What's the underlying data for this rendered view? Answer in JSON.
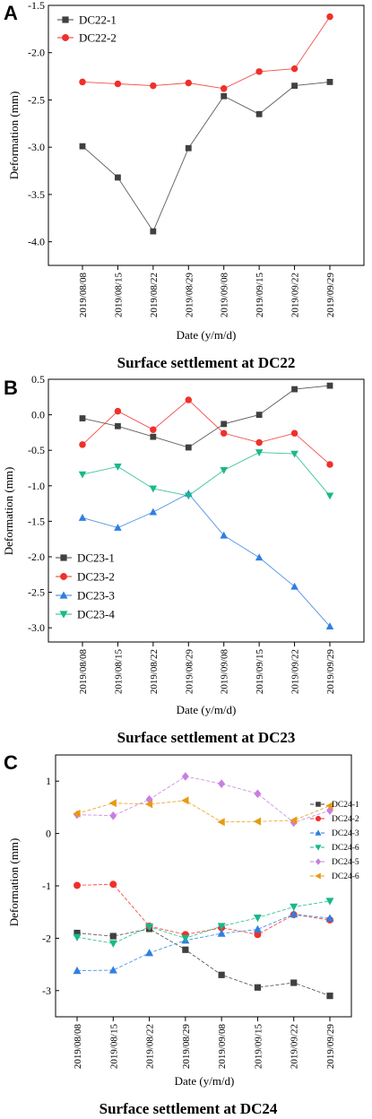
{
  "chart_data": [
    {
      "panel": "A",
      "type": "line",
      "caption": "Surface settlement at DC22",
      "xlabel": "Date (y/m/d)",
      "ylabel": "Deformation (mm)",
      "categories": [
        "2019/08/08",
        "2019/08/15",
        "2019/08/22",
        "2019/08/29",
        "2019/09/08",
        "2019/09/15",
        "2019/09/22",
        "2019/09/29"
      ],
      "ylim": [
        -4.25,
        -1.5
      ],
      "yticks": [
        "-1.5",
        "-2.0",
        "-2.5",
        "-3.0",
        "-3.5",
        "-4.0"
      ],
      "ytick_values": [
        -1.5,
        -2.0,
        -2.5,
        -3.0,
        -3.5,
        -4.0
      ],
      "legend_position": "top-left",
      "series": [
        {
          "name": "DC22-1",
          "color": "#404040",
          "marker": "square",
          "values": [
            -2.99,
            -3.32,
            -3.89,
            -3.01,
            -2.46,
            -2.65,
            -2.35,
            -2.31
          ]
        },
        {
          "name": "DC22-2",
          "color": "#f0302a",
          "marker": "circle",
          "values": [
            -2.31,
            -2.33,
            -2.35,
            -2.32,
            -2.38,
            -2.2,
            -2.17,
            -1.62
          ]
        }
      ]
    },
    {
      "panel": "B",
      "type": "line",
      "caption": "Surface settlement at DC23",
      "xlabel": "Date (y/m/d)",
      "ylabel": "Deformation (mm)",
      "categories": [
        "2019/08/08",
        "2019/08/15",
        "2019/08/22",
        "2019/08/29",
        "2019/09/08",
        "2019/09/15",
        "2019/09/22",
        "2019/09/29"
      ],
      "ylim": [
        -3.2,
        0.5
      ],
      "yticks": [
        "0.5",
        "0.0",
        "-0.5",
        "-1.0",
        "-1.5",
        "-2.0",
        "-2.5",
        "-3.0"
      ],
      "ytick_values": [
        0.5,
        0.0,
        -0.5,
        -1.0,
        -1.5,
        -2.0,
        -2.5,
        -3.0
      ],
      "legend_position": "bottom-left",
      "series": [
        {
          "name": "DC23-1",
          "color": "#404040",
          "marker": "square",
          "values": [
            -0.05,
            -0.16,
            -0.31,
            -0.46,
            -0.13,
            0.0,
            0.36,
            0.41
          ]
        },
        {
          "name": "DC23-2",
          "color": "#f0302a",
          "marker": "circle",
          "values": [
            -0.42,
            0.05,
            -0.21,
            0.21,
            -0.26,
            -0.39,
            -0.26,
            -0.7
          ]
        },
        {
          "name": "DC23-3",
          "color": "#2f7fe0",
          "marker": "triangle-up",
          "values": [
            -1.45,
            -1.59,
            -1.37,
            -1.11,
            -1.7,
            -2.01,
            -2.42,
            -2.98
          ]
        },
        {
          "name": "DC23-4",
          "color": "#19b88a",
          "marker": "triangle-down",
          "values": [
            -0.84,
            -0.73,
            -1.04,
            -1.14,
            -0.78,
            -0.53,
            -0.55,
            -1.14
          ]
        }
      ]
    },
    {
      "panel": "C",
      "type": "line",
      "caption": "Surface settlement at DC24",
      "xlabel": "Date (y/m/d)",
      "ylabel": "Deformation (mm)",
      "categories": [
        "2019/08/08",
        "2019/08/15",
        "2019/08/22",
        "2019/08/29",
        "2019/09/08",
        "2019/09/15",
        "2019/09/22",
        "2019/09/29"
      ],
      "ylim": [
        -3.5,
        1.5
      ],
      "yticks": [
        "1",
        "0",
        "-1",
        "-2",
        "-3"
      ],
      "ytick_values": [
        1,
        0,
        -1,
        -2,
        -3
      ],
      "legend_position": "right-middle",
      "series": [
        {
          "name": "DC24-1",
          "color": "#404040",
          "marker": "square",
          "values": [
            -1.9,
            -1.96,
            -1.82,
            -2.22,
            -2.7,
            -2.94,
            -2.85,
            -3.1
          ]
        },
        {
          "name": "DC24-2",
          "color": "#f0302a",
          "marker": "circle",
          "values": [
            -0.99,
            -0.97,
            -1.77,
            -1.93,
            -1.8,
            -1.93,
            -1.55,
            -1.65
          ]
        },
        {
          "name": "DC24-3",
          "color": "#2f7fe0",
          "marker": "triangle-up",
          "values": [
            -2.62,
            -2.61,
            -2.28,
            -2.04,
            -1.91,
            -1.83,
            -1.54,
            -1.62
          ]
        },
        {
          "name": "DC24-6",
          "color": "#19b88a",
          "marker": "triangle-down",
          "values": [
            -1.98,
            -2.1,
            -1.78,
            -2.0,
            -1.77,
            -1.61,
            -1.4,
            -1.29
          ]
        },
        {
          "name": "DC24-5",
          "color": "#c77fe0",
          "marker": "diamond",
          "values": [
            0.36,
            0.34,
            0.65,
            1.09,
            0.95,
            0.76,
            0.21,
            0.44
          ]
        },
        {
          "name": "DC24-6",
          "color": "#e89a10",
          "marker": "triangle-left",
          "values": [
            0.38,
            0.58,
            0.56,
            0.63,
            0.22,
            0.23,
            0.25,
            0.53
          ]
        }
      ]
    }
  ]
}
